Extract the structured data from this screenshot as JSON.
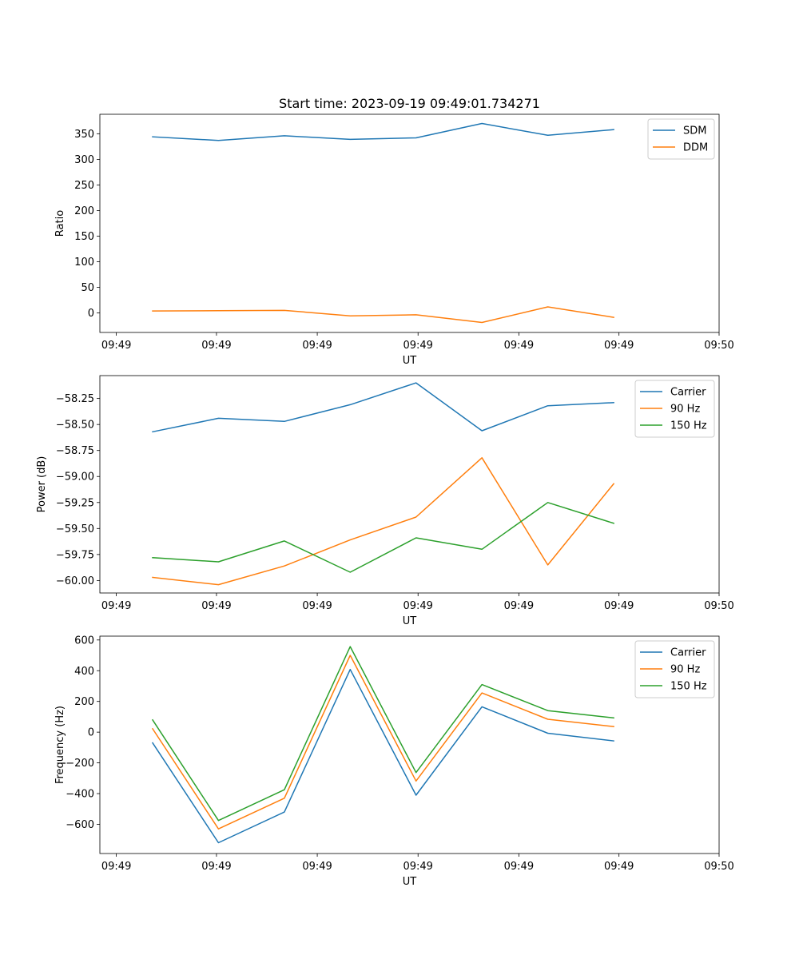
{
  "chart_data": [
    {
      "type": "line",
      "title": "Start time: 2023-09-19 09:49:01.734271",
      "xlabel": "UT",
      "ylabel": "Ratio",
      "x": [
        1,
        2,
        3,
        4,
        5,
        6,
        7,
        8
      ],
      "xlim": [
        0.2,
        9.6
      ],
      "x_ticks": [
        {
          "value": 0.45,
          "label": "09:49"
        },
        {
          "value": 1.97,
          "label": "09:49"
        },
        {
          "value": 3.5,
          "label": "09:49"
        },
        {
          "value": 5.03,
          "label": "09:49"
        },
        {
          "value": 6.56,
          "label": "09:49"
        },
        {
          "value": 8.08,
          "label": "09:49"
        },
        {
          "value": 9.6,
          "label": "09:50"
        }
      ],
      "ylim": [
        -38,
        388
      ],
      "y_ticks": [
        0,
        50,
        100,
        150,
        200,
        250,
        300,
        350
      ],
      "legend_position": "top-right",
      "series": [
        {
          "name": "SDM",
          "color": "#1f77b4",
          "values": [
            344,
            337,
            346,
            339,
            342,
            370,
            347,
            358
          ]
        },
        {
          "name": "DDM",
          "color": "#ff7f0e",
          "values": [
            4,
            4.5,
            5,
            -5.5,
            -3.5,
            -18.5,
            12,
            -8.5
          ]
        }
      ]
    },
    {
      "type": "line",
      "title": "",
      "xlabel": "UT",
      "ylabel": "Power (dB)",
      "x": [
        1,
        2,
        3,
        4,
        5,
        6,
        7,
        8
      ],
      "xlim": [
        0.2,
        9.6
      ],
      "x_ticks": [
        {
          "value": 0.45,
          "label": "09:49"
        },
        {
          "value": 1.97,
          "label": "09:49"
        },
        {
          "value": 3.5,
          "label": "09:49"
        },
        {
          "value": 5.03,
          "label": "09:49"
        },
        {
          "value": 6.56,
          "label": "09:49"
        },
        {
          "value": 8.08,
          "label": "09:49"
        },
        {
          "value": 9.6,
          "label": "09:50"
        }
      ],
      "ylim": [
        -60.12,
        -58.03
      ],
      "y_ticks": [
        -60.0,
        -59.75,
        -59.5,
        -59.25,
        -59.0,
        -58.75,
        -58.5,
        -58.25
      ],
      "y_tick_labels": [
        "−60.00",
        "−59.75",
        "−59.50",
        "−59.25",
        "−59.00",
        "−58.75",
        "−58.50",
        "−58.25"
      ],
      "legend_position": "top-right",
      "series": [
        {
          "name": "Carrier",
          "color": "#1f77b4",
          "values": [
            -58.57,
            -58.44,
            -58.47,
            -58.31,
            -58.1,
            -58.56,
            -58.32,
            -58.29
          ]
        },
        {
          "name": "90 Hz",
          "color": "#ff7f0e",
          "values": [
            -59.97,
            -60.04,
            -59.86,
            -59.61,
            -59.39,
            -58.82,
            -59.85,
            -59.07
          ]
        },
        {
          "name": "150 Hz",
          "color": "#2ca02c",
          "values": [
            -59.78,
            -59.82,
            -59.62,
            -59.92,
            -59.59,
            -59.7,
            -59.25,
            -59.45
          ]
        }
      ]
    },
    {
      "type": "line",
      "title": "",
      "xlabel": "UT",
      "ylabel": "Frequency (Hz)",
      "x": [
        1,
        2,
        3,
        4,
        5,
        6,
        7,
        8
      ],
      "xlim": [
        0.2,
        9.6
      ],
      "x_ticks": [
        {
          "value": 0.45,
          "label": "09:49"
        },
        {
          "value": 1.97,
          "label": "09:49"
        },
        {
          "value": 3.5,
          "label": "09:49"
        },
        {
          "value": 5.03,
          "label": "09:49"
        },
        {
          "value": 6.56,
          "label": "09:49"
        },
        {
          "value": 8.08,
          "label": "09:49"
        },
        {
          "value": 9.6,
          "label": "09:50"
        }
      ],
      "ylim": [
        -790,
        625
      ],
      "y_ticks": [
        -600,
        -400,
        -200,
        0,
        200,
        400,
        600
      ],
      "y_tick_labels": [
        "−600",
        "−400",
        "−200",
        "0",
        "200",
        "400",
        "600"
      ],
      "legend_position": "top-right",
      "series": [
        {
          "name": "Carrier",
          "color": "#1f77b4",
          "values": [
            -70,
            -720,
            -520,
            408,
            -410,
            165,
            -7,
            -57
          ]
        },
        {
          "name": "90 Hz",
          "color": "#ff7f0e",
          "values": [
            22,
            -630,
            -430,
            500,
            -318,
            255,
            84,
            36
          ]
        },
        {
          "name": "150 Hz",
          "color": "#2ca02c",
          "values": [
            80,
            -575,
            -375,
            557,
            -263,
            310,
            140,
            93
          ]
        }
      ]
    }
  ]
}
